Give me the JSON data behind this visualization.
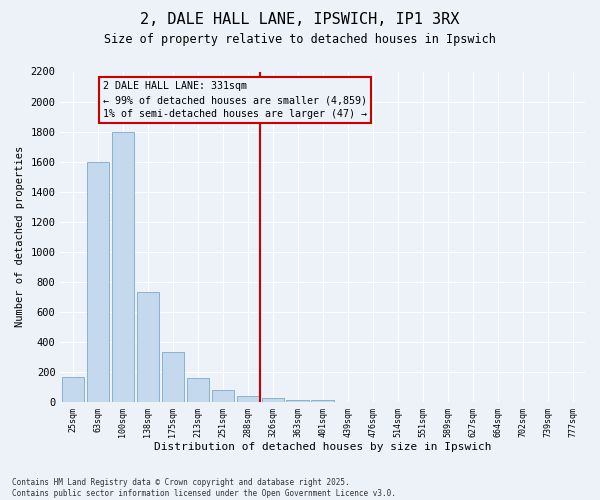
{
  "title": "2, DALE HALL LANE, IPSWICH, IP1 3RX",
  "subtitle": "Size of property relative to detached houses in Ipswich",
  "xlabel": "Distribution of detached houses by size in Ipswich",
  "ylabel": "Number of detached properties",
  "bar_categories": [
    "25sqm",
    "63sqm",
    "100sqm",
    "138sqm",
    "175sqm",
    "213sqm",
    "251sqm",
    "288sqm",
    "326sqm",
    "363sqm",
    "401sqm",
    "439sqm",
    "476sqm",
    "514sqm",
    "551sqm",
    "589sqm",
    "627sqm",
    "664sqm",
    "702sqm",
    "739sqm",
    "777sqm"
  ],
  "bar_values": [
    170,
    1600,
    1800,
    730,
    330,
    160,
    80,
    40,
    25,
    15,
    15,
    0,
    0,
    0,
    0,
    0,
    0,
    0,
    0,
    0,
    0
  ],
  "bar_color": "#c5d9ee",
  "bar_edge_color": "#7aaac8",
  "vline_index": 8,
  "vline_color": "#cc0000",
  "annotation_text": "2 DALE HALL LANE: 331sqm\n← 99% of detached houses are smaller (4,859)\n1% of semi-detached houses are larger (47) →",
  "annotation_box_color": "#cc0000",
  "ylim": [
    0,
    2200
  ],
  "yticks": [
    0,
    200,
    400,
    600,
    800,
    1000,
    1200,
    1400,
    1600,
    1800,
    2000,
    2200
  ],
  "background_color": "#edf1f8",
  "grid_color": "#ffffff",
  "footer_line1": "Contains HM Land Registry data © Crown copyright and database right 2025.",
  "footer_line2": "Contains public sector information licensed under the Open Government Licence v3.0."
}
